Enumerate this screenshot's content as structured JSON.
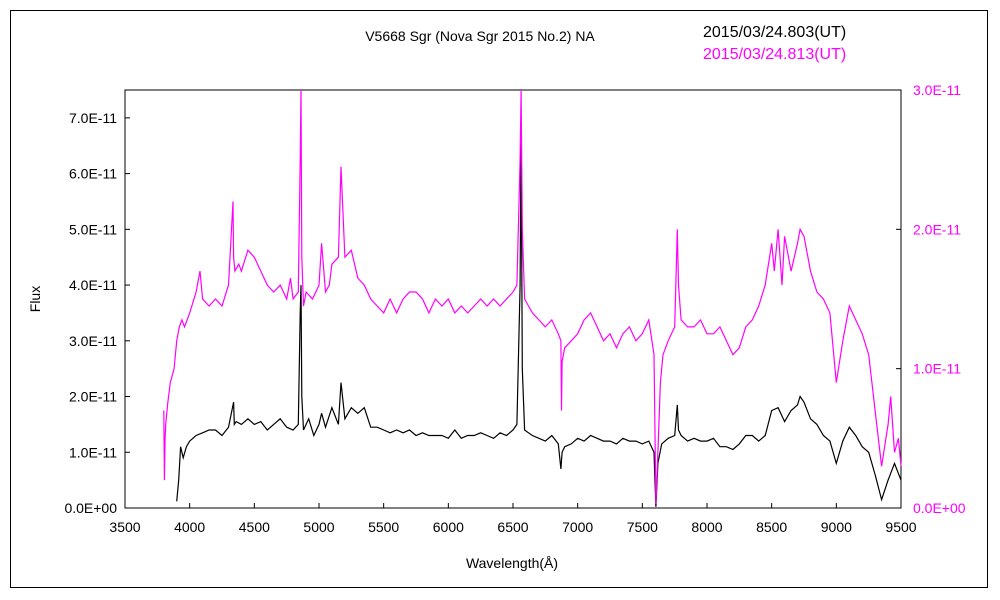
{
  "chart_data": {
    "type": "line",
    "title": "V5668 Sgr (Nova Sgr 2015 No.2)    NA",
    "xlabel": "Wavelength(Å)",
    "ylabel": "Flux",
    "xlim": [
      3500,
      9500
    ],
    "x_ticks": [
      "3500",
      "4000",
      "4500",
      "5000",
      "5500",
      "6000",
      "6500",
      "7000",
      "7500",
      "8000",
      "8500",
      "9000",
      "9500"
    ],
    "ylim_left": [
      0,
      7.5e-11
    ],
    "y_ticks_left": [
      "0.0E+00",
      "1.0E-11",
      "2.0E-11",
      "3.0E-11",
      "4.0E-11",
      "5.0E-11",
      "6.0E-11",
      "7.0E-11"
    ],
    "ylim_right": [
      0,
      3e-11
    ],
    "y_ticks_right": [
      "0.0E+00",
      "1.0E-11",
      "2.0E-11",
      "3.0E-11"
    ],
    "grid": false,
    "legend": "top-right",
    "series": [
      {
        "name": "2015/03/24.803(UT)",
        "color": "#000000",
        "axis": "left",
        "x": [
          3900,
          3915,
          3930,
          3950,
          3975,
          4000,
          4050,
          4100,
          4150,
          4200,
          4250,
          4300,
          4340,
          4345,
          4360,
          4400,
          4450,
          4500,
          4550,
          4600,
          4650,
          4700,
          4750,
          4800,
          4840,
          4855,
          4861,
          4867,
          4880,
          4920,
          4960,
          5000,
          5020,
          5050,
          5100,
          5150,
          5170,
          5200,
          5250,
          5300,
          5350,
          5400,
          5450,
          5500,
          5550,
          5600,
          5650,
          5700,
          5750,
          5800,
          5850,
          5900,
          5950,
          6000,
          6050,
          6100,
          6150,
          6200,
          6250,
          6300,
          6350,
          6400,
          6450,
          6500,
          6530,
          6555,
          6563,
          6572,
          6590,
          6620,
          6650,
          6700,
          6750,
          6800,
          6850,
          6870,
          6880,
          6900,
          6950,
          7000,
          7050,
          7100,
          7150,
          7200,
          7250,
          7300,
          7350,
          7400,
          7450,
          7500,
          7550,
          7590,
          7605,
          7620,
          7650,
          7700,
          7750,
          7770,
          7780,
          7800,
          7850,
          7900,
          7950,
          8000,
          8050,
          8100,
          8150,
          8200,
          8250,
          8300,
          8350,
          8400,
          8450,
          8500,
          8550,
          8600,
          8650,
          8700,
          8720,
          8750,
          8800,
          8850,
          8900,
          8950,
          9000,
          9050,
          9100,
          9150,
          9200,
          9250,
          9300,
          9350,
          9400,
          9450,
          9500
        ],
        "y": [
          1.2e-12,
          5e-12,
          1.1e-11,
          9e-12,
          1.1e-11,
          1.2e-11,
          1.3e-11,
          1.35e-11,
          1.4e-11,
          1.4e-11,
          1.3e-11,
          1.45e-11,
          1.9e-11,
          1.5e-11,
          1.55e-11,
          1.5e-11,
          1.6e-11,
          1.5e-11,
          1.55e-11,
          1.4e-11,
          1.5e-11,
          1.6e-11,
          1.45e-11,
          1.4e-11,
          1.5e-11,
          3.5e-11,
          4e-11,
          2e-11,
          1.4e-11,
          1.6e-11,
          1.3e-11,
          1.5e-11,
          1.7e-11,
          1.45e-11,
          1.8e-11,
          1.5e-11,
          2.25e-11,
          1.6e-11,
          1.8e-11,
          1.7e-11,
          1.8e-11,
          1.45e-11,
          1.45e-11,
          1.4e-11,
          1.35e-11,
          1.4e-11,
          1.35e-11,
          1.4e-11,
          1.3e-11,
          1.35e-11,
          1.3e-11,
          1.3e-11,
          1.3e-11,
          1.25e-11,
          1.4e-11,
          1.25e-11,
          1.3e-11,
          1.3e-11,
          1.35e-11,
          1.3e-11,
          1.25e-11,
          1.35e-11,
          1.3e-11,
          1.4e-11,
          1.5e-11,
          4e-11,
          6.9e-11,
          2.5e-11,
          1.4e-11,
          1.35e-11,
          1.3e-11,
          1.25e-11,
          1.2e-11,
          1.3e-11,
          1.15e-11,
          7e-12,
          1e-11,
          1.1e-11,
          1.15e-11,
          1.25e-11,
          1.2e-11,
          1.3e-11,
          1.25e-11,
          1.2e-11,
          1.2e-11,
          1.15e-11,
          1.25e-11,
          1.2e-11,
          1.2e-11,
          1.15e-11,
          1.2e-11,
          1e-11,
          2e-13,
          8e-12,
          1.15e-11,
          1.25e-11,
          1.3e-11,
          1.85e-11,
          1.4e-11,
          1.3e-11,
          1.2e-11,
          1.25e-11,
          1.2e-11,
          1.2e-11,
          1.25e-11,
          1.1e-11,
          1.1e-11,
          1.05e-11,
          1.15e-11,
          1.3e-11,
          1.3e-11,
          1.2e-11,
          1.3e-11,
          1.75e-11,
          1.8e-11,
          1.55e-11,
          1.75e-11,
          1.85e-11,
          2e-11,
          1.9e-11,
          1.6e-11,
          1.5e-11,
          1.3e-11,
          1.2e-11,
          8e-12,
          1.2e-11,
          1.45e-11,
          1.3e-11,
          1.1e-11,
          1e-11,
          6e-12,
          1.5e-12,
          5e-12,
          8e-12,
          5e-12
        ]
      },
      {
        "name": "2015/03/24.813(UT)",
        "color": "#ff00ff",
        "axis": "right",
        "x": [
          3800,
          3805,
          3810,
          3815,
          3830,
          3850,
          3880,
          3900,
          3920,
          3940,
          3960,
          4000,
          4050,
          4080,
          4100,
          4150,
          4200,
          4250,
          4300,
          4335,
          4340,
          4350,
          4380,
          4400,
          4450,
          4500,
          4550,
          4600,
          4650,
          4700,
          4750,
          4780,
          4800,
          4840,
          4855,
          4861,
          4867,
          4880,
          4900,
          4950,
          5000,
          5020,
          5050,
          5080,
          5100,
          5150,
          5170,
          5200,
          5250,
          5300,
          5350,
          5400,
          5450,
          5500,
          5550,
          5600,
          5650,
          5700,
          5750,
          5800,
          5850,
          5900,
          5950,
          6000,
          6050,
          6100,
          6150,
          6200,
          6250,
          6300,
          6350,
          6400,
          6450,
          6500,
          6530,
          6555,
          6563,
          6572,
          6590,
          6620,
          6650,
          6700,
          6750,
          6800,
          6850,
          6870,
          6875,
          6880,
          6900,
          6950,
          7000,
          7050,
          7100,
          7150,
          7200,
          7250,
          7300,
          7350,
          7400,
          7450,
          7500,
          7550,
          7590,
          7605,
          7620,
          7640,
          7660,
          7700,
          7750,
          7770,
          7780,
          7800,
          7850,
          7900,
          7950,
          8000,
          8050,
          8100,
          8150,
          8200,
          8250,
          8300,
          8350,
          8400,
          8450,
          8500,
          8520,
          8550,
          8580,
          8600,
          8650,
          8700,
          8720,
          8750,
          8800,
          8850,
          8900,
          8950,
          9000,
          9050,
          9100,
          9150,
          9200,
          9250,
          9300,
          9350,
          9400,
          9420,
          9450,
          9480,
          9500
        ],
        "y": [
          7e-12,
          2e-12,
          5e-12,
          6e-12,
          7.5e-12,
          9e-12,
          1e-11,
          1.2e-11,
          1.3e-11,
          1.35e-11,
          1.3e-11,
          1.4e-11,
          1.55e-11,
          1.7e-11,
          1.5e-11,
          1.45e-11,
          1.5e-11,
          1.45e-11,
          1.6e-11,
          2.2e-11,
          1.8e-11,
          1.7e-11,
          1.75e-11,
          1.7e-11,
          1.85e-11,
          1.8e-11,
          1.7e-11,
          1.6e-11,
          1.55e-11,
          1.6e-11,
          1.5e-11,
          1.65e-11,
          1.5e-11,
          1.55e-11,
          2.5e-11,
          3.2e-11,
          1.8e-11,
          1.45e-11,
          1.55e-11,
          1.5e-11,
          1.6e-11,
          1.9e-11,
          1.55e-11,
          1.6e-11,
          1.75e-11,
          1.8e-11,
          2.45e-11,
          1.8e-11,
          1.85e-11,
          1.65e-11,
          1.6e-11,
          1.5e-11,
          1.45e-11,
          1.4e-11,
          1.5e-11,
          1.4e-11,
          1.5e-11,
          1.55e-11,
          1.55e-11,
          1.5e-11,
          1.4e-11,
          1.5e-11,
          1.45e-11,
          1.5e-11,
          1.4e-11,
          1.45e-11,
          1.4e-11,
          1.45e-11,
          1.5e-11,
          1.45e-11,
          1.5e-11,
          1.45e-11,
          1.5e-11,
          1.55e-11,
          1.6e-11,
          2.5e-11,
          3.2e-11,
          2e-11,
          1.5e-11,
          1.45e-11,
          1.4e-11,
          1.35e-11,
          1.3e-11,
          1.35e-11,
          1.25e-11,
          1.2e-11,
          7e-12,
          1.05e-11,
          1.15e-11,
          1.2e-11,
          1.25e-11,
          1.35e-11,
          1.4e-11,
          1.3e-11,
          1.2e-11,
          1.25e-11,
          1.15e-11,
          1.25e-11,
          1.3e-11,
          1.2e-11,
          1.25e-11,
          1.35e-11,
          1.1e-11,
          3e-13,
          4e-12,
          9e-12,
          1.1e-11,
          1.2e-11,
          1.3e-11,
          2e-11,
          1.6e-11,
          1.35e-11,
          1.3e-11,
          1.3e-11,
          1.35e-11,
          1.25e-11,
          1.25e-11,
          1.3e-11,
          1.2e-11,
          1.1e-11,
          1.15e-11,
          1.3e-11,
          1.35e-11,
          1.45e-11,
          1.6e-11,
          1.9e-11,
          1.7e-11,
          2e-11,
          1.6e-11,
          1.95e-11,
          1.7e-11,
          1.9e-11,
          2e-11,
          1.95e-11,
          1.7e-11,
          1.55e-11,
          1.5e-11,
          1.4e-11,
          9e-12,
          1.2e-11,
          1.45e-11,
          1.35e-11,
          1.25e-11,
          1.1e-11,
          7e-12,
          3e-12,
          6e-12,
          8e-12,
          4e-12,
          5e-12,
          3e-12
        ]
      }
    ]
  }
}
